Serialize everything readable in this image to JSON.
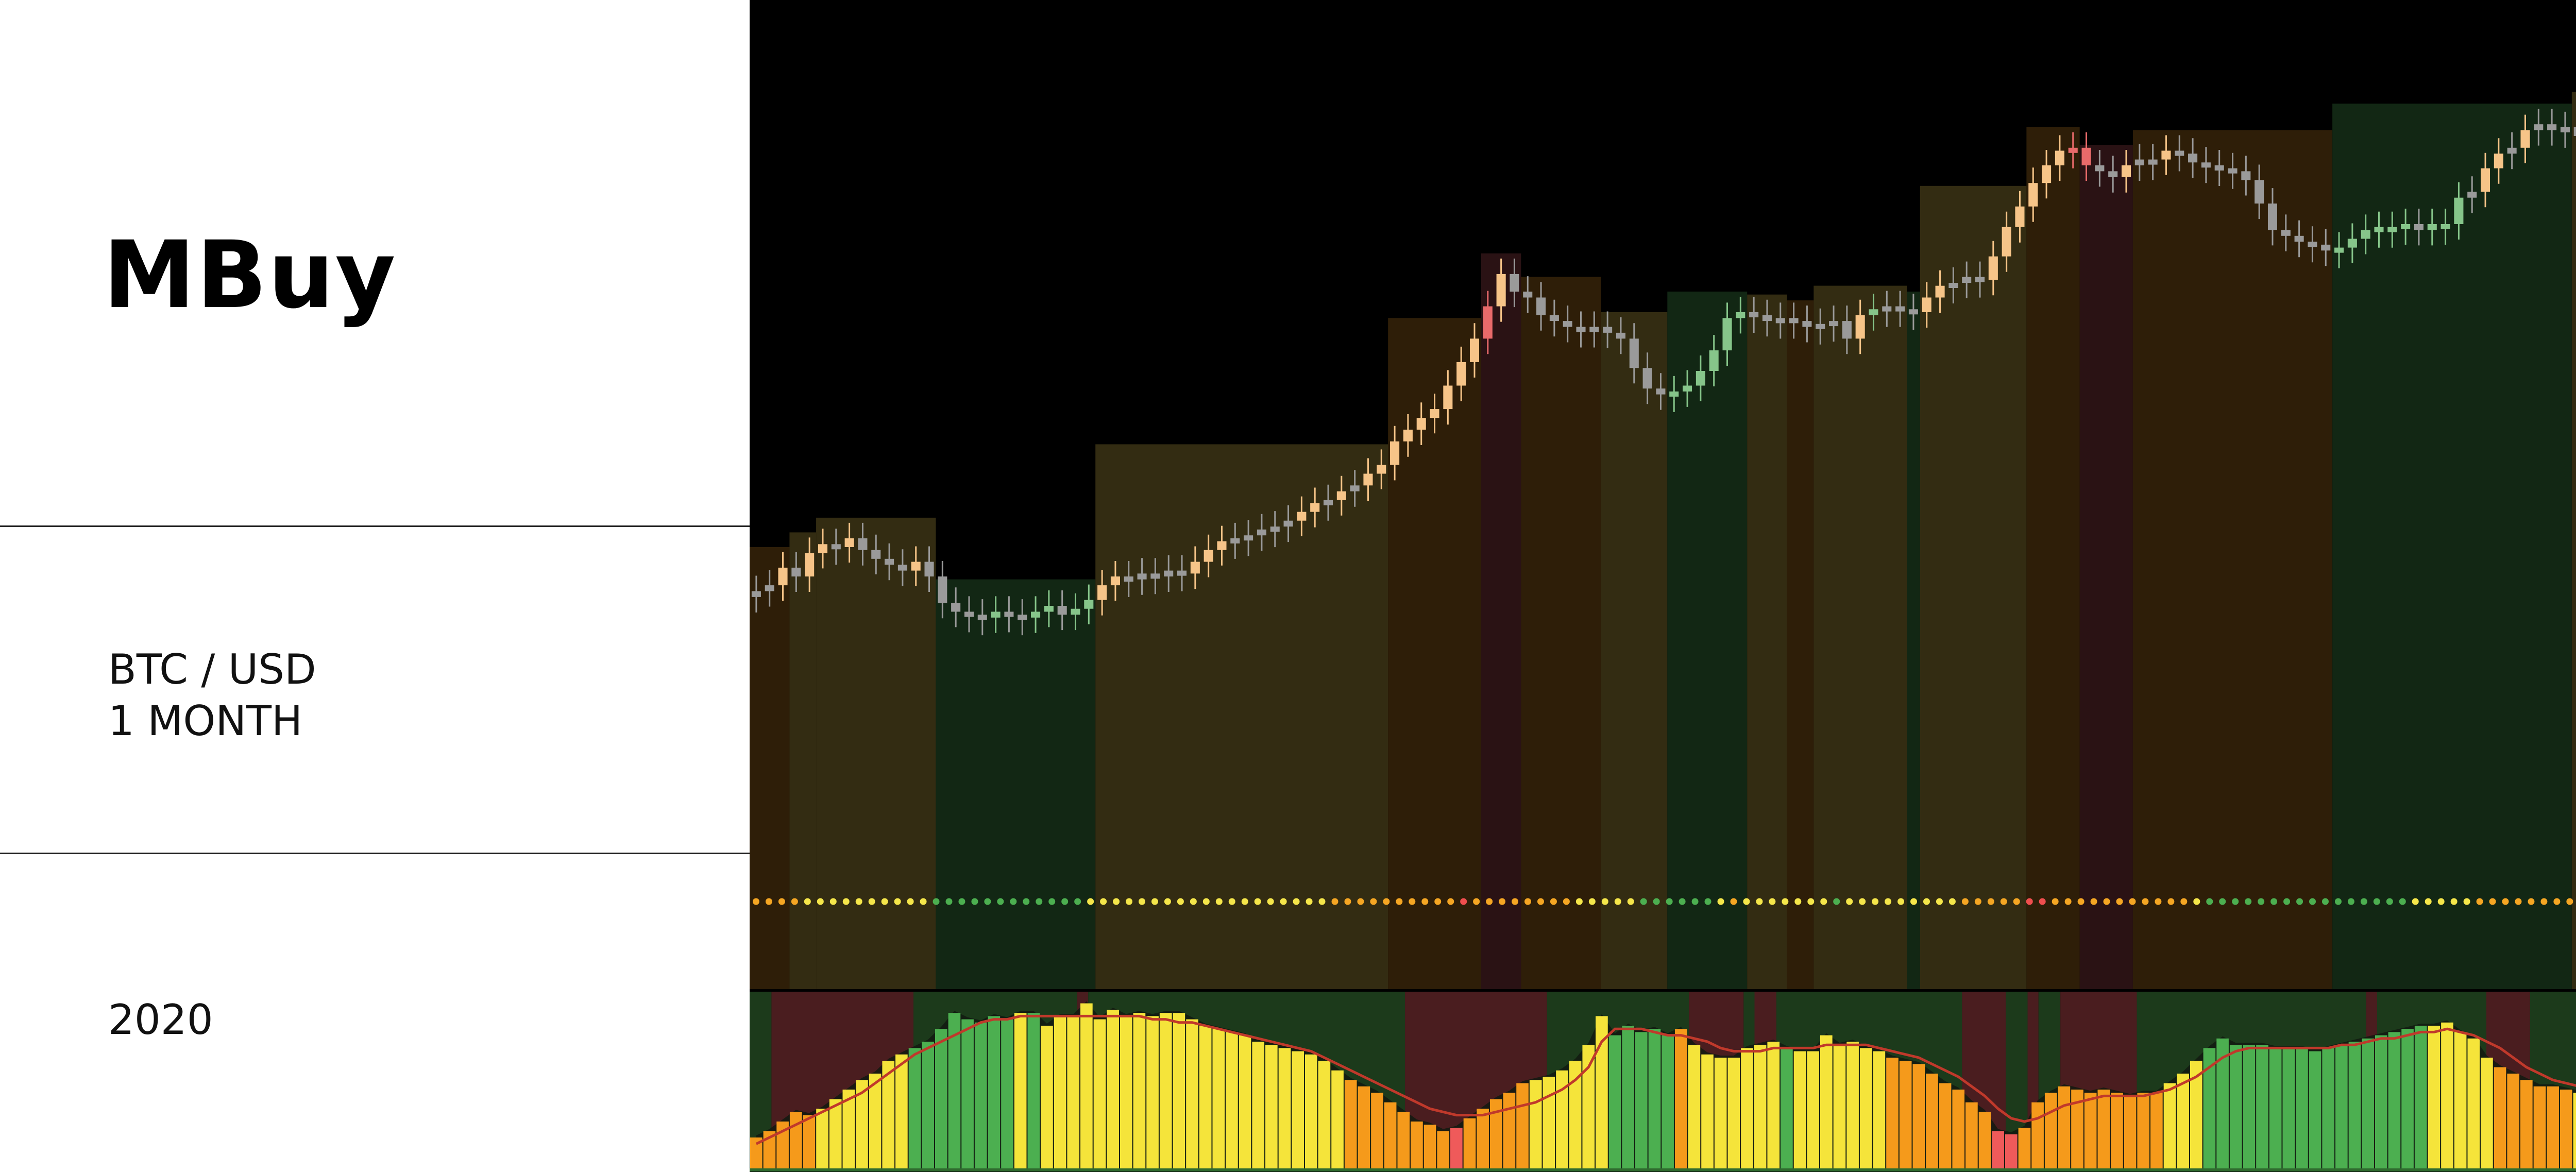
{
  "sidebar": {
    "brand": "MBuy",
    "pair": "BTC / USD",
    "timeframe": "1 MONTH",
    "year": "2020"
  },
  "colors": {
    "background": "#000000",
    "candle_orange": "#f6c488",
    "candle_gray": "#9a9a9a",
    "candle_green": "#86c58a",
    "candle_red": "#e86a6a",
    "band_brown": "#2e1e08",
    "band_olive": "#332c12",
    "band_green": "#122714",
    "band_red": "#2a1214",
    "dot_orange": "#f5a623",
    "dot_yellow": "#f5e64a",
    "dot_green": "#4caf50",
    "dot_red": "#f04e4e",
    "hist_orange": "#f59a1b",
    "hist_yellow": "#f5e43a",
    "hist_green": "#4caf50",
    "hist_red": "#ef5a5a",
    "osc_bg_red": "#4a1d1f",
    "osc_bg_green": "#1c3a1b",
    "signal_line": "#c0392b"
  },
  "chart_data": {
    "type": "candlestick",
    "title": "",
    "price_series": {
      "values": [
        25,
        27,
        33,
        30,
        38,
        41,
        40,
        43,
        39,
        36,
        34,
        32,
        35,
        30,
        21,
        18,
        17,
        16,
        18,
        17,
        16,
        18,
        20,
        17,
        19,
        22,
        27,
        30,
        29,
        31,
        30,
        32,
        31,
        35,
        39,
        42,
        43,
        44,
        46,
        47,
        49,
        52,
        55,
        56,
        59,
        61,
        65,
        68,
        76,
        80,
        84,
        87,
        95,
        103,
        111,
        122,
        133,
        127,
        125,
        119,
        117,
        115,
        114,
        115,
        113,
        111,
        101,
        94,
        92,
        93,
        95,
        100,
        107,
        118,
        120,
        119,
        117,
        118,
        117,
        115,
        116,
        117,
        111,
        119,
        121,
        122,
        121,
        120,
        125,
        129,
        130,
        132,
        131,
        139,
        149,
        156,
        164,
        170,
        175,
        176,
        170,
        168,
        166,
        170,
        172,
        172,
        175,
        174,
        171,
        170,
        169,
        168,
        165,
        157,
        148,
        146,
        144,
        143,
        141,
        142,
        145,
        148,
        149,
        149,
        150,
        148,
        150,
        150,
        159,
        161,
        169,
        174,
        176,
        182,
        184,
        182,
        183,
        180,
        183,
        182,
        188,
        191,
        194,
        194,
        195,
        194,
        190
      ]
    },
    "regime_dots": [
      "orange",
      "orange",
      "orange",
      "orange",
      "yellow",
      "yellow",
      "yellow",
      "yellow",
      "yellow",
      "yellow",
      "yellow",
      "yellow",
      "yellow",
      "yellow",
      "green",
      "green",
      "green",
      "green",
      "green",
      "green",
      "green",
      "green",
      "green",
      "green",
      "green",
      "green",
      "yellow",
      "yellow",
      "yellow",
      "yellow",
      "yellow",
      "yellow",
      "yellow",
      "yellow",
      "yellow",
      "yellow",
      "yellow",
      "yellow",
      "yellow",
      "yellow",
      "yellow",
      "yellow",
      "yellow",
      "yellow",
      "yellow",
      "orange",
      "orange",
      "orange",
      "orange",
      "orange",
      "orange",
      "orange",
      "orange",
      "orange",
      "orange",
      "red",
      "orange",
      "orange",
      "orange",
      "orange",
      "orange",
      "orange",
      "orange",
      "orange",
      "yellow",
      "yellow",
      "yellow",
      "yellow",
      "yellow",
      "green",
      "green",
      "green",
      "green",
      "green",
      "green",
      "yellow",
      "orange",
      "yellow",
      "yellow",
      "yellow",
      "yellow",
      "yellow",
      "yellow",
      "yellow",
      "green",
      "yellow",
      "yellow",
      "yellow",
      "yellow",
      "yellow",
      "yellow",
      "yellow",
      "yellow",
      "yellow",
      "orange",
      "orange",
      "orange",
      "orange",
      "orange",
      "red",
      "red",
      "orange",
      "orange",
      "orange",
      "orange",
      "orange",
      "orange",
      "orange",
      "orange",
      "orange",
      "orange",
      "orange",
      "yellow",
      "green",
      "green",
      "green",
      "green",
      "green",
      "green",
      "green",
      "green",
      "green",
      "green",
      "green",
      "green",
      "green",
      "green",
      "green",
      "green",
      "yellow",
      "yellow",
      "yellow",
      "yellow",
      "yellow",
      "orange",
      "orange",
      "orange",
      "orange",
      "orange",
      "orange",
      "orange",
      "orange",
      "orange",
      "orange",
      "orange",
      "orange",
      "orange",
      "orange",
      "orange",
      "orange",
      "orange",
      "orange"
    ],
    "oscillator": {
      "values": [
        10,
        12,
        15,
        18,
        17,
        19,
        22,
        25,
        28,
        30,
        34,
        36,
        38,
        40,
        44,
        49,
        47,
        46,
        48,
        47,
        49,
        49,
        45,
        48,
        48,
        52,
        47,
        50,
        48,
        49,
        48,
        49,
        49,
        47,
        45,
        44,
        43,
        42,
        40,
        39,
        38,
        37,
        36,
        34,
        31,
        28,
        26,
        24,
        21,
        18,
        15,
        14,
        12,
        13,
        16,
        19,
        22,
        24,
        27,
        28,
        29,
        31,
        34,
        39,
        48,
        42,
        45,
        43,
        44,
        42,
        44,
        39,
        36,
        35,
        35,
        38,
        39,
        40,
        38,
        37,
        37,
        42,
        39,
        40,
        38,
        37,
        35,
        34,
        33,
        30,
        27,
        25,
        21,
        18,
        12,
        11,
        13,
        21,
        24,
        26,
        25,
        24,
        25,
        24,
        23,
        24,
        24,
        27,
        30,
        34,
        38,
        41,
        39,
        39,
        39,
        38,
        38,
        38,
        37,
        38,
        39,
        40,
        41,
        42,
        43,
        44,
        45,
        45,
        46,
        43,
        41,
        35,
        32,
        30,
        28,
        26,
        26,
        25,
        24,
        23,
        22,
        22,
        21,
        21,
        20,
        21,
        22,
        25
      ],
      "colors": [
        "orange",
        "orange",
        "orange",
        "orange",
        "orange",
        "yellow",
        "yellow",
        "yellow",
        "yellow",
        "yellow",
        "yellow",
        "yellow",
        "green",
        "green",
        "green",
        "green",
        "green",
        "green",
        "green",
        "green",
        "yellow",
        "green",
        "yellow",
        "yellow",
        "yellow",
        "yellow",
        "yellow",
        "yellow",
        "yellow",
        "yellow",
        "yellow",
        "yellow",
        "yellow",
        "yellow",
        "yellow",
        "yellow",
        "yellow",
        "yellow",
        "yellow",
        "yellow",
        "yellow",
        "yellow",
        "yellow",
        "yellow",
        "yellow",
        "orange",
        "orange",
        "orange",
        "orange",
        "orange",
        "orange",
        "orange",
        "orange",
        "red",
        "orange",
        "orange",
        "orange",
        "orange",
        "orange",
        "yellow",
        "yellow",
        "yellow",
        "yellow",
        "yellow",
        "yellow",
        "green",
        "green",
        "green",
        "green",
        "green",
        "orange",
        "yellow",
        "yellow",
        "yellow",
        "yellow",
        "yellow",
        "yellow",
        "yellow",
        "green",
        "yellow",
        "yellow",
        "yellow",
        "yellow",
        "yellow",
        "yellow",
        "yellow",
        "orange",
        "orange",
        "orange",
        "orange",
        "orange",
        "orange",
        "orange",
        "orange",
        "red",
        "red",
        "orange",
        "orange",
        "orange",
        "orange",
        "orange",
        "orange",
        "orange",
        "orange",
        "orange",
        "orange",
        "orange",
        "yellow",
        "yellow",
        "yellow",
        "green",
        "green",
        "green",
        "green",
        "green",
        "green",
        "green",
        "green",
        "green",
        "green",
        "green",
        "green",
        "green",
        "green",
        "green",
        "green",
        "green",
        "yellow",
        "yellow",
        "yellow",
        "yellow",
        "yellow",
        "orange",
        "orange",
        "orange",
        "orange",
        "orange",
        "orange",
        "yellow",
        "yellow",
        "orange",
        "orange",
        "orange",
        "orange",
        "orange",
        "orange",
        "orange",
        "orange",
        "orange",
        "orange",
        "orange",
        "orange"
      ],
      "signal": [
        8,
        10,
        12,
        14,
        16,
        18,
        20,
        22,
        24,
        27,
        30,
        33,
        36,
        38,
        40,
        42,
        44,
        46,
        47,
        47,
        48,
        48,
        48,
        48,
        48,
        48,
        48,
        48,
        48,
        48,
        47,
        47,
        46,
        46,
        45,
        44,
        43,
        42,
        41,
        40,
        39,
        38,
        37,
        35,
        33,
        31,
        29,
        27,
        25,
        23,
        21,
        19,
        18,
        17,
        17,
        17,
        18,
        19,
        20,
        21,
        23,
        25,
        28,
        32,
        40,
        44,
        44,
        44,
        43,
        42,
        42,
        41,
        40,
        38,
        37,
        37,
        37,
        38,
        38,
        38,
        38,
        39,
        39,
        39,
        39,
        38,
        37,
        36,
        35,
        33,
        31,
        29,
        26,
        23,
        19,
        16,
        15,
        16,
        18,
        20,
        21,
        22,
        23,
        23,
        23,
        23,
        24,
        25,
        27,
        29,
        32,
        35,
        37,
        38,
        38,
        38,
        38,
        38,
        38,
        38,
        39,
        39,
        40,
        41,
        41,
        42,
        43,
        43,
        44,
        43,
        42,
        40,
        38,
        35,
        32,
        30,
        28,
        27,
        26,
        25,
        24,
        23,
        22,
        22,
        21,
        21,
        22,
        23
      ]
    },
    "background_regimes": {
      "price": [
        {
          "from": 0,
          "to": 3,
          "color": "brown"
        },
        {
          "from": 3,
          "to": 5,
          "color": "olive"
        },
        {
          "from": 5,
          "to": 14,
          "color": "olive"
        },
        {
          "from": 14,
          "to": 26,
          "color": "green"
        },
        {
          "from": 26,
          "to": 48,
          "color": "olive"
        },
        {
          "from": 48,
          "to": 55,
          "color": "brown"
        },
        {
          "from": 55,
          "to": 58,
          "color": "red"
        },
        {
          "from": 58,
          "to": 64,
          "color": "brown"
        },
        {
          "from": 64,
          "to": 69,
          "color": "olive"
        },
        {
          "from": 69,
          "to": 75,
          "color": "green"
        },
        {
          "from": 75,
          "to": 78,
          "color": "olive"
        },
        {
          "from": 78,
          "to": 80,
          "color": "brown"
        },
        {
          "from": 80,
          "to": 87,
          "color": "olive"
        },
        {
          "from": 87,
          "to": 88,
          "color": "green"
        },
        {
          "from": 88,
          "to": 96,
          "color": "olive"
        },
        {
          "from": 96,
          "to": 100,
          "color": "brown"
        },
        {
          "from": 100,
          "to": 104,
          "color": "red"
        },
        {
          "from": 104,
          "to": 119,
          "color": "brown"
        },
        {
          "from": 119,
          "to": 137,
          "color": "green"
        },
        {
          "from": 137,
          "to": 141,
          "color": "olive"
        },
        {
          "from": 141,
          "to": 150,
          "color": "brown"
        },
        {
          "from": 150,
          "to": 152,
          "color": "olive"
        },
        {
          "from": 152,
          "to": 179,
          "color": "brown"
        }
      ],
      "oscillator": [
        {
          "from": 0,
          "to": 2,
          "color": "green"
        },
        {
          "from": 2,
          "to": 15,
          "color": "red"
        },
        {
          "from": 15,
          "to": 30,
          "color": "green"
        },
        {
          "from": 30,
          "to": 31,
          "color": "red"
        },
        {
          "from": 31,
          "to": 60,
          "color": "green"
        },
        {
          "from": 60,
          "to": 73,
          "color": "red"
        },
        {
          "from": 73,
          "to": 86,
          "color": "green"
        },
        {
          "from": 86,
          "to": 91,
          "color": "red"
        },
        {
          "from": 91,
          "to": 92,
          "color": "green"
        },
        {
          "from": 92,
          "to": 94,
          "color": "red"
        },
        {
          "from": 94,
          "to": 111,
          "color": "green"
        },
        {
          "from": 111,
          "to": 115,
          "color": "red"
        },
        {
          "from": 115,
          "to": 117,
          "color": "green"
        },
        {
          "from": 117,
          "to": 118,
          "color": "red"
        },
        {
          "from": 118,
          "to": 120,
          "color": "green"
        },
        {
          "from": 120,
          "to": 127,
          "color": "red"
        },
        {
          "from": 127,
          "to": 148,
          "color": "green"
        },
        {
          "from": 148,
          "to": 149,
          "color": "red"
        },
        {
          "from": 149,
          "to": 159,
          "color": "green"
        },
        {
          "from": 159,
          "to": 163,
          "color": "red"
        },
        {
          "from": 163,
          "to": 168,
          "color": "green"
        },
        {
          "from": 168,
          "to": 172,
          "color": "red"
        },
        {
          "from": 172,
          "to": 176,
          "color": "green"
        },
        {
          "from": 176,
          "to": 179,
          "color": "red"
        }
      ]
    },
    "grid": false,
    "legend": "none"
  }
}
